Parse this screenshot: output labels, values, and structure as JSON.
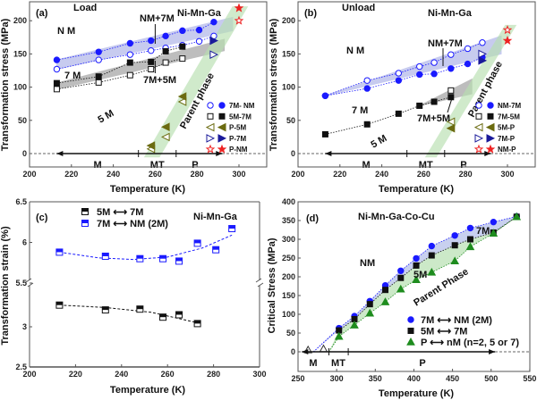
{
  "chart_data": [
    {
      "panel": "(a)",
      "type": "scatter",
      "xlabel": "Temperature (K)",
      "ylabel": "Transformation stress (MPa)",
      "xlim": [
        200,
        313
      ],
      "ylim": [
        -20,
        228
      ],
      "xticks": [
        200,
        220,
        240,
        260,
        280,
        300
      ],
      "yticks": [
        0,
        50,
        100,
        150,
        200
      ],
      "annotations": {
        "tag": "(a)",
        "mode": "Load",
        "alloy": "Ni-Mn-Ga",
        "nm": "N M",
        "nm7m": "NM+7M",
        "m7": "7 M",
        "m75": "7M+5M",
        "m5": "5 M",
        "parent": "Parent phase",
        "M": "M",
        "MT": "MT",
        "P": "P"
      },
      "phase_ranges": {
        "M": [
          213,
          252
        ],
        "MT": [
          252,
          270
        ],
        "P": [
          270,
          292
        ]
      },
      "series": [
        {
          "name": "7M- NM",
          "marker": "circle",
          "color": "#1a1aff",
          "filled": [
            [
              213,
              141
            ],
            [
              233,
              153
            ],
            [
              248,
              166
            ],
            [
              258,
              170
            ],
            [
              265,
              177
            ],
            [
              273,
              185
            ],
            [
              281,
              186
            ],
            [
              288,
              198
            ]
          ],
          "open": [
            [
              213,
              127
            ],
            [
              233,
              141
            ],
            [
              248,
              149
            ],
            [
              258,
              155
            ],
            [
              265,
              159
            ],
            [
              273,
              163
            ],
            [
              281,
              169
            ],
            [
              288,
              177
            ]
          ]
        },
        {
          "name": "5M-7M",
          "marker": "square",
          "color": "#111111",
          "filled": [
            [
              213,
              106
            ],
            [
              233,
              116
            ],
            [
              248,
              137
            ],
            [
              258,
              138
            ],
            [
              265,
              154
            ],
            [
              273,
              161
            ]
          ],
          "open": [
            [
              213,
              97
            ],
            [
              233,
              107
            ],
            [
              248,
              118
            ],
            [
              258,
              127
            ],
            [
              265,
              137
            ],
            [
              273,
              143
            ]
          ]
        },
        {
          "name": "P-5M",
          "marker": "triangle-left",
          "color": "#6b6b10",
          "filled": [
            [
              258,
              12
            ],
            [
              265,
              40
            ],
            [
              273,
              86
            ]
          ],
          "open": [
            [
              258,
              7
            ],
            [
              265,
              25
            ],
            [
              273,
              78
            ]
          ]
        },
        {
          "name": "P-7M",
          "marker": "triangle-right",
          "color": "#1a1a9a",
          "filled": [
            [
              288,
              170
            ]
          ],
          "open": [
            [
              288,
              149
            ]
          ]
        },
        {
          "name": "P-NM",
          "marker": "star",
          "color": "#ee2222",
          "filled": [
            [
              300,
              219
            ]
          ],
          "open": [
            [
              300,
              200
            ]
          ]
        }
      ],
      "bands": [
        {
          "color": "#aab0e8",
          "upper": [
            [
              213,
              141
            ],
            [
              297,
              205
            ]
          ],
          "lower": [
            [
              213,
              127
            ],
            [
              297,
              185
            ]
          ]
        },
        {
          "color": "#9a9a9a",
          "upper": [
            [
              213,
              106
            ],
            [
              293,
              172
            ]
          ],
          "lower": [
            [
              213,
              97
            ],
            [
              293,
              155
            ]
          ]
        },
        {
          "color": "#b7e0b0",
          "poly": [
            [
              255,
              -5
            ],
            [
              262,
              -5
            ],
            [
              304,
              221
            ],
            [
              297,
              221
            ]
          ]
        }
      ]
    },
    {
      "panel": "(b)",
      "type": "scatter",
      "xlabel": "Temperature (K)",
      "ylabel": "Transformation stress (MPa)",
      "xlim": [
        200,
        313
      ],
      "ylim": [
        -20,
        228
      ],
      "xticks": [
        200,
        220,
        240,
        260,
        280,
        300
      ],
      "yticks": [
        0,
        50,
        100,
        150,
        200
      ],
      "annotations": {
        "tag": "(b)",
        "mode": "Unload",
        "alloy": "Ni-Mn-Ga",
        "nm": "N M",
        "nm7m": "NM+7M",
        "m7": "7 M",
        "m75": "7M+5M",
        "m5": "5 M",
        "parent": "Parent phase",
        "M": "M",
        "MT": "MT",
        "P": "P"
      },
      "phase_ranges": {
        "M": [
          213,
          252
        ],
        "MT": [
          252,
          270
        ],
        "P": [
          270,
          292
        ]
      },
      "series": [
        {
          "name": "NM-7M",
          "marker": "circle",
          "color": "#1a1aff",
          "filled": [
            [
              213,
              87
            ],
            [
              233,
              98
            ],
            [
              248,
              110
            ],
            [
              258,
              119
            ],
            [
              265,
              120
            ],
            [
              273,
              128
            ],
            [
              281,
              135
            ],
            [
              288,
              145
            ]
          ],
          "open": [
            [
              213,
              87
            ],
            [
              233,
              110
            ],
            [
              248,
              121
            ],
            [
              258,
              131
            ],
            [
              265,
              137
            ],
            [
              273,
              149
            ],
            [
              281,
              158
            ],
            [
              288,
              167
            ]
          ]
        },
        {
          "name": "7M-5M",
          "marker": "square",
          "color": "#111111",
          "filled": [
            [
              213,
              29
            ],
            [
              233,
              44
            ],
            [
              248,
              60
            ],
            [
              258,
              72
            ],
            [
              265,
              78
            ],
            [
              273,
              85
            ]
          ],
          "open": [
            [
              273,
              95
            ]
          ]
        },
        {
          "name": "5M-P",
          "marker": "triangle-left",
          "color": "#6b6b10",
          "filled": [
            [
              273,
              38
            ]
          ],
          "open": [
            [
              273,
              48
            ]
          ]
        },
        {
          "name": "7M-P",
          "marker": "triangle-right",
          "color": "#1a1a9a",
          "filled": [
            [
              288,
              140
            ]
          ],
          "open": [
            [
              288,
              150
            ]
          ]
        },
        {
          "name": "NM-P",
          "marker": "star",
          "color": "#ee2222",
          "filled": [
            [
              300,
              170
            ]
          ],
          "open": [
            [
              300,
              186
            ]
          ]
        }
      ],
      "bands": [
        {
          "color": "#aab0e8",
          "upper": [
            [
              213,
              87
            ],
            [
              297,
              177
            ]
          ],
          "lower": [
            [
              213,
              87
            ],
            [
              297,
              150
            ]
          ]
        },
        {
          "color": "#9a9a9a",
          "upper": [
            [
              258,
              72
            ],
            [
              283,
              112
            ]
          ],
          "lower": [
            [
              258,
              72
            ],
            [
              283,
              90
            ]
          ]
        },
        {
          "color": "#b7e0b0",
          "poly": [
            [
              261,
              -5
            ],
            [
              266,
              -5
            ],
            [
              304,
              193
            ],
            [
              299,
              193
            ]
          ]
        }
      ]
    },
    {
      "panel": "(c)",
      "type": "scatter",
      "xlabel": "Temperature (K)",
      "ylabel": "Transformation strain (%)",
      "xlim": [
        200,
        300
      ],
      "ylim_upper": [
        5.5,
        6.5
      ],
      "ylim_lower": [
        2.5,
        3.45
      ],
      "axis_break": true,
      "xticks": [
        200,
        220,
        240,
        260,
        280,
        300
      ],
      "yticks": [
        2.5,
        3.0,
        5.5,
        6.0,
        6.5
      ],
      "annotations": {
        "tag": "(c)",
        "alloy": "Ni-Mn-Ga"
      },
      "series": [
        {
          "name": "5M ⟷ 7M",
          "marker": "square-half",
          "color": "#111111",
          "values": [
            [
              213,
              3.27
            ],
            [
              233,
              3.21
            ],
            [
              248,
              3.22
            ],
            [
              258,
              3.12
            ],
            [
              265,
              3.15
            ],
            [
              273,
              3.04
            ]
          ],
          "fit": [
            [
              213,
              3.27
            ],
            [
              233,
              3.24
            ],
            [
              253,
              3.18
            ],
            [
              273,
              3.05
            ]
          ]
        },
        {
          "name": "7M ⟷ NM (2M)",
          "marker": "square-half",
          "color": "#1a1aff",
          "values": [
            [
              213,
              5.88
            ],
            [
              233,
              5.83
            ],
            [
              248,
              5.8
            ],
            [
              258,
              5.8
            ],
            [
              265,
              5.77
            ],
            [
              273,
              5.99
            ],
            [
              281,
              5.91
            ],
            [
              288,
              6.17
            ]
          ],
          "fit": [
            [
              213,
              5.88
            ],
            [
              230,
              5.81
            ],
            [
              245,
              5.79
            ],
            [
              260,
              5.82
            ],
            [
              275,
              5.93
            ],
            [
              288,
              6.09
            ]
          ]
        }
      ]
    },
    {
      "panel": "(d)",
      "type": "scatter",
      "xlabel": "Temperature (K)",
      "ylabel": "Critical Stress (MPa)",
      "xlim": [
        250,
        550
      ],
      "ylim": [
        -50,
        400
      ],
      "xticks": [
        250,
        300,
        350,
        400,
        450,
        500,
        550
      ],
      "yticks": [
        0,
        50,
        100,
        150,
        200,
        250,
        300,
        350,
        400
      ],
      "annotations": {
        "tag": "(d)",
        "alloy": "Ni-Mn-Ga-Co-Cu",
        "nm": "NM",
        "m7": "7M",
        "m5": "5M",
        "parent": "Parent Phase",
        "M": "M",
        "MT": "MT",
        "P": "P"
      },
      "phase_ranges": {
        "M": [
          255,
          290
        ],
        "MT": [
          290,
          315
        ],
        "P": [
          315,
          505
        ]
      },
      "series": [
        {
          "name": "7M ⟷ NM (2M)",
          "marker": "circle",
          "color": "#1a1aff",
          "values": [
            [
              303,
              63
            ],
            [
              323,
              95
            ],
            [
              343,
              135
            ],
            [
              363,
              177
            ],
            [
              383,
              216
            ],
            [
              403,
              249
            ],
            [
              423,
              282
            ],
            [
              453,
              310
            ],
            [
              473,
              330
            ],
            [
              503,
              346
            ],
            [
              533,
              361
            ]
          ]
        },
        {
          "name": "5M ⟷ 7M",
          "marker": "square",
          "color": "#111111",
          "values": [
            [
              303,
              57
            ],
            [
              323,
              87
            ],
            [
              343,
              127
            ],
            [
              363,
              165
            ],
            [
              383,
              197
            ],
            [
              403,
              230
            ],
            [
              423,
              257
            ],
            [
              453,
              284
            ],
            [
              473,
              300
            ],
            [
              503,
              318
            ],
            [
              533,
              360
            ]
          ]
        },
        {
          "name": "P ⟷ nM (n=2, 5 or 7)",
          "marker": "triangle-up",
          "color": "#1e8c1e",
          "values": [
            [
              303,
              41
            ],
            [
              323,
              71
            ],
            [
              343,
              103
            ],
            [
              363,
              133
            ],
            [
              383,
              167
            ],
            [
              403,
              192
            ],
            [
              423,
              212
            ],
            [
              453,
              242
            ],
            [
              473,
              280
            ],
            [
              503,
              316
            ],
            [
              533,
              360
            ]
          ]
        }
      ],
      "low_points": [
        [
          263,
          5
        ],
        [
          283,
          8
        ]
      ],
      "bands": [
        {
          "color": "#b0bce8",
          "start": [
            270,
            0
          ]
        },
        {
          "color": "#b7e0b0",
          "start": [
            290,
            0
          ]
        }
      ]
    }
  ]
}
